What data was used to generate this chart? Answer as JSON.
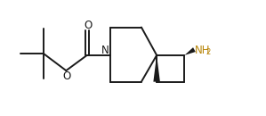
{
  "bg_color": "#ffffff",
  "bond_color": "#1a1a1a",
  "N_color": "#1a1a1a",
  "O_color": "#1a1a1a",
  "NH2_color": "#b8860b",
  "line_width": 1.4,
  "font_size_atom": 8.5,
  "figsize": [
    2.99,
    1.3
  ],
  "dpi": 100,
  "xlim": [
    0,
    9.5
  ],
  "ylim": [
    0,
    4.0
  ]
}
